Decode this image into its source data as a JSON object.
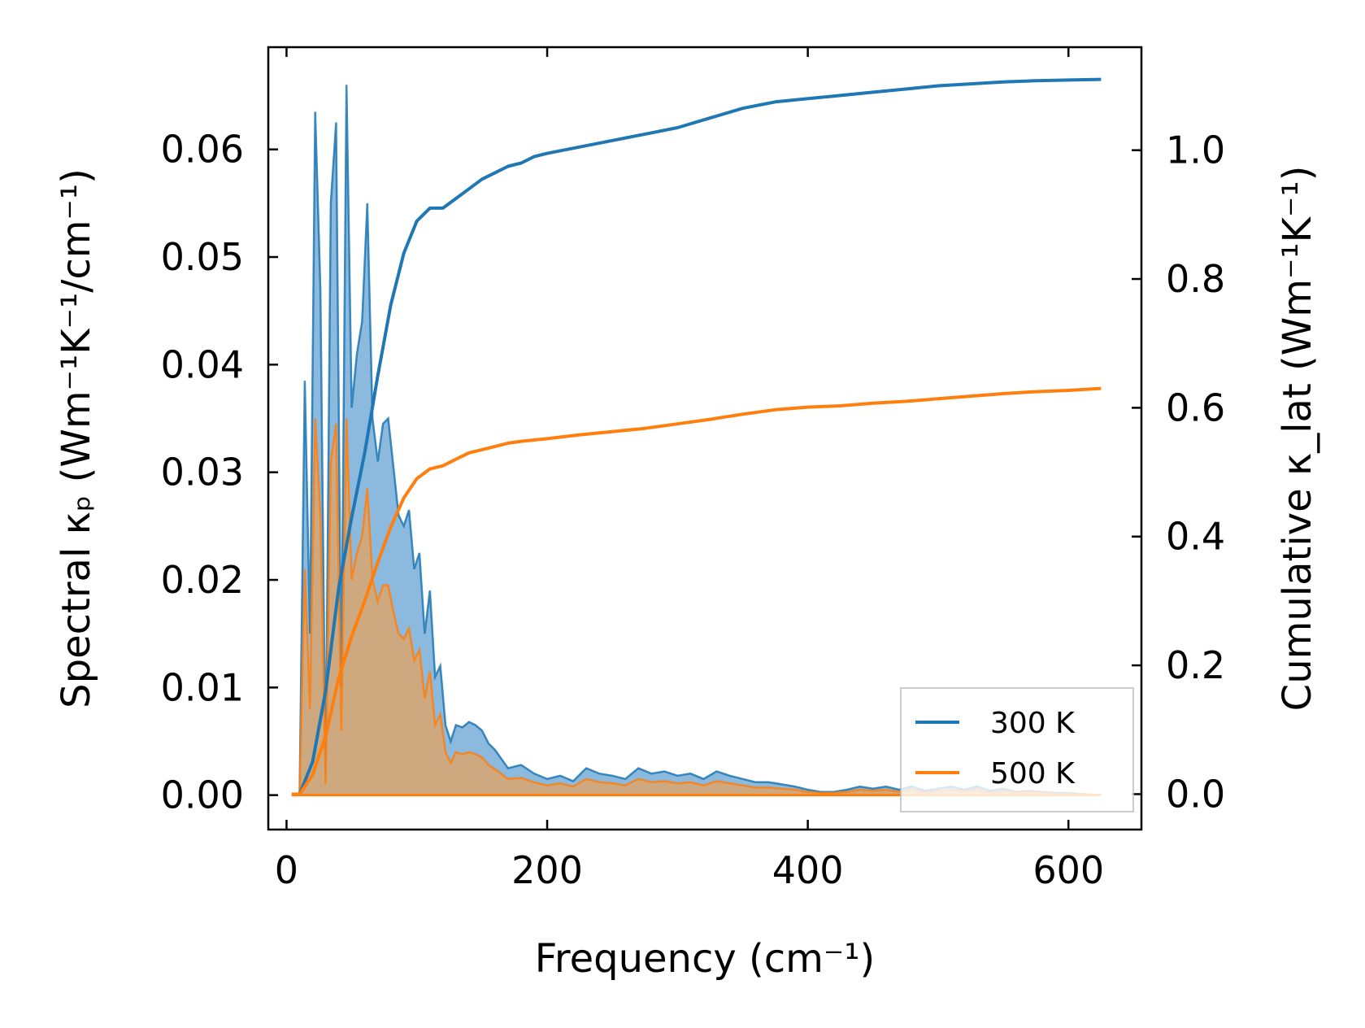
{
  "chart_data": {
    "type": "line",
    "xlabel": "Frequency (cm⁻¹)",
    "ylabel_left": "Spectral κₚ (Wm⁻¹K⁻¹/cm⁻¹)",
    "ylabel_right": "Cumulative κ_lat (Wm⁻¹K⁻¹)",
    "xlim": [
      -14,
      656
    ],
    "ylim_left": [
      -0.0032,
      0.0695
    ],
    "ylim_right": [
      -0.055,
      1.16
    ],
    "x_ticks": [
      0,
      200,
      400,
      600
    ],
    "x_tick_labels": [
      "0",
      "200",
      "400",
      "600"
    ],
    "y_left_ticks": [
      0,
      0.01,
      0.02,
      0.03,
      0.04,
      0.05,
      0.06
    ],
    "y_left_tick_labels": [
      "0.00",
      "0.01",
      "0.02",
      "0.03",
      "0.04",
      "0.05",
      "0.06"
    ],
    "y_right_ticks": [
      0,
      0.2,
      0.4,
      0.6,
      0.8,
      1.0
    ],
    "y_right_tick_labels": [
      "0.0",
      "0.2",
      "0.4",
      "0.6",
      "0.8",
      "1.0"
    ],
    "legend": {
      "position": "lower-right",
      "entries": [
        "300 K",
        "500 K"
      ]
    },
    "colors": {
      "s300": "#1f77b4",
      "s500": "#ff7f0e",
      "fill300": "#6fa8d6",
      "fill500": "#d9a56e"
    },
    "spectral": [
      {
        "name": "300 K",
        "x": [
          4,
          10,
          14,
          18,
          22,
          26,
          30,
          34,
          38,
          42,
          46,
          50,
          54,
          58,
          62,
          66,
          70,
          74,
          78,
          82,
          86,
          90,
          94,
          98,
          102,
          106,
          110,
          114,
          118,
          122,
          126,
          130,
          135,
          140,
          145,
          150,
          155,
          160,
          170,
          180,
          190,
          200,
          210,
          220,
          230,
          240,
          250,
          260,
          270,
          280,
          290,
          300,
          310,
          320,
          330,
          340,
          350,
          360,
          370,
          380,
          390,
          400,
          410,
          420,
          430,
          440,
          450,
          460,
          470,
          480,
          490,
          500,
          510,
          520,
          530,
          540,
          550,
          560,
          570,
          580,
          590,
          600,
          610,
          625
        ],
        "values": [
          0,
          0,
          0.0385,
          0.015,
          0.0635,
          0.047,
          0.002,
          0.055,
          0.0625,
          0.01,
          0.066,
          0.036,
          0.041,
          0.044,
          0.055,
          0.035,
          0.031,
          0.0345,
          0.035,
          0.0305,
          0.026,
          0.025,
          0.0265,
          0.021,
          0.0225,
          0.015,
          0.019,
          0.011,
          0.012,
          0.0065,
          0.005,
          0.0065,
          0.0063,
          0.0068,
          0.0065,
          0.006,
          0.0048,
          0.0042,
          0.0025,
          0.0028,
          0.002,
          0.0015,
          0.0018,
          0.0013,
          0.0025,
          0.002,
          0.0018,
          0.0015,
          0.0025,
          0.002,
          0.0022,
          0.0018,
          0.002,
          0.0015,
          0.0022,
          0.0018,
          0.0015,
          0.0012,
          0.0012,
          0.001,
          0.0008,
          0.0005,
          0.0003,
          0.0003,
          0.0005,
          0.0008,
          0.0006,
          0.0008,
          0.0005,
          0.0008,
          0.0004,
          0.0006,
          0.0008,
          0.0005,
          0.0008,
          0.0004,
          0.0006,
          0.0003,
          0.0004,
          0.0003,
          0.0002,
          0.0002,
          0.0001,
          0
        ]
      },
      {
        "name": "500 K",
        "x": [
          4,
          10,
          14,
          18,
          22,
          26,
          30,
          34,
          38,
          42,
          46,
          50,
          54,
          58,
          62,
          66,
          70,
          74,
          78,
          82,
          86,
          90,
          94,
          98,
          102,
          106,
          110,
          114,
          118,
          122,
          126,
          130,
          135,
          140,
          145,
          150,
          155,
          160,
          170,
          180,
          190,
          200,
          210,
          220,
          230,
          240,
          250,
          260,
          270,
          280,
          290,
          300,
          310,
          320,
          330,
          340,
          350,
          360,
          370,
          380,
          390,
          400,
          410,
          420,
          430,
          440,
          450,
          460,
          470,
          480,
          490,
          500,
          510,
          520,
          530,
          540,
          550,
          560,
          570,
          580,
          590,
          600,
          610,
          625
        ],
        "values": [
          0,
          0,
          0.021,
          0.008,
          0.035,
          0.026,
          0.001,
          0.031,
          0.0345,
          0.006,
          0.035,
          0.02,
          0.0225,
          0.024,
          0.0285,
          0.02,
          0.018,
          0.0195,
          0.0195,
          0.017,
          0.015,
          0.0145,
          0.0155,
          0.0125,
          0.0135,
          0.009,
          0.0115,
          0.0065,
          0.0075,
          0.004,
          0.003,
          0.004,
          0.0038,
          0.004,
          0.0038,
          0.0035,
          0.0028,
          0.0024,
          0.0015,
          0.0016,
          0.0012,
          0.0009,
          0.0011,
          0.0008,
          0.0015,
          0.0012,
          0.0011,
          0.0009,
          0.0015,
          0.0012,
          0.0013,
          0.0011,
          0.0012,
          0.0009,
          0.0013,
          0.0011,
          0.0009,
          0.0007,
          0.0007,
          0.0006,
          0.0005,
          0.0003,
          0.0002,
          0.0002,
          0.0003,
          0.0005,
          0.0004,
          0.0005,
          0.0003,
          0.0005,
          0.0002,
          0.0004,
          0.0005,
          0.0003,
          0.0005,
          0.0002,
          0.0004,
          0.0002,
          0.0003,
          0.0002,
          0.0001,
          0.0001,
          0.0001,
          0
        ]
      }
    ],
    "cumulative": [
      {
        "name": "300 K",
        "x": [
          4,
          10,
          20,
          30,
          40,
          50,
          60,
          70,
          80,
          90,
          100,
          110,
          120,
          130,
          140,
          150,
          160,
          170,
          180,
          190,
          200,
          225,
          250,
          275,
          300,
          325,
          350,
          375,
          400,
          425,
          450,
          475,
          500,
          525,
          550,
          575,
          600,
          625
        ],
        "values": [
          0,
          0,
          0.05,
          0.16,
          0.32,
          0.43,
          0.53,
          0.65,
          0.76,
          0.84,
          0.89,
          0.91,
          0.91,
          0.925,
          0.94,
          0.955,
          0.965,
          0.975,
          0.98,
          0.99,
          0.995,
          1.005,
          1.015,
          1.025,
          1.035,
          1.05,
          1.065,
          1.075,
          1.08,
          1.085,
          1.09,
          1.095,
          1.1,
          1.103,
          1.106,
          1.108,
          1.109,
          1.11
        ]
      },
      {
        "name": "500 K",
        "x": [
          4,
          10,
          20,
          30,
          40,
          50,
          60,
          70,
          80,
          90,
          100,
          110,
          120,
          130,
          140,
          150,
          160,
          170,
          180,
          190,
          200,
          225,
          250,
          275,
          300,
          325,
          350,
          375,
          400,
          425,
          450,
          475,
          500,
          525,
          550,
          575,
          600,
          625
        ],
        "values": [
          0,
          0,
          0.03,
          0.09,
          0.18,
          0.245,
          0.3,
          0.36,
          0.415,
          0.46,
          0.49,
          0.505,
          0.51,
          0.52,
          0.53,
          0.535,
          0.54,
          0.545,
          0.548,
          0.55,
          0.552,
          0.558,
          0.563,
          0.568,
          0.575,
          0.582,
          0.59,
          0.597,
          0.601,
          0.603,
          0.607,
          0.61,
          0.614,
          0.618,
          0.622,
          0.625,
          0.627,
          0.63
        ]
      }
    ]
  }
}
